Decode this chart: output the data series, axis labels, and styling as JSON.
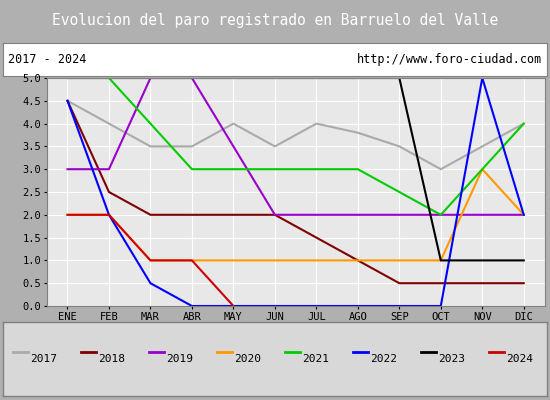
{
  "title": "Evolucion del paro registrado en Barruelo del Valle",
  "subtitle_left": "2017 - 2024",
  "subtitle_right": "http://www.foro-ciudad.com",
  "months": [
    "ENE",
    "FEB",
    "MAR",
    "ABR",
    "MAY",
    "JUN",
    "JUL",
    "AGO",
    "SEP",
    "OCT",
    "NOV",
    "DIC"
  ],
  "ylim": [
    0,
    5.0
  ],
  "yticks": [
    0.0,
    0.5,
    1.0,
    1.5,
    2.0,
    2.5,
    3.0,
    3.5,
    4.0,
    4.5,
    5.0
  ],
  "series": {
    "2017": {
      "color": "#aaaaaa",
      "data": [
        4.5,
        4.0,
        3.5,
        3.5,
        4.0,
        3.5,
        4.0,
        3.8,
        3.5,
        3.0,
        3.5,
        4.0
      ]
    },
    "2018": {
      "color": "#800000",
      "data": [
        4.5,
        2.5,
        2.0,
        2.0,
        2.0,
        2.0,
        1.5,
        1.0,
        0.5,
        0.5,
        0.5,
        0.5
      ]
    },
    "2019": {
      "color": "#9900cc",
      "data": [
        3.0,
        3.0,
        5.0,
        5.0,
        3.5,
        2.0,
        2.0,
        2.0,
        2.0,
        2.0,
        2.0,
        2.0
      ]
    },
    "2020": {
      "color": "#ff9900",
      "data": [
        2.0,
        2.0,
        1.0,
        1.0,
        1.0,
        1.0,
        1.0,
        1.0,
        1.0,
        1.0,
        3.0,
        2.0
      ]
    },
    "2021": {
      "color": "#00cc00",
      "data": [
        5.0,
        5.0,
        4.0,
        3.0,
        3.0,
        3.0,
        3.0,
        3.0,
        2.5,
        2.0,
        3.0,
        4.0
      ]
    },
    "2022": {
      "color": "#0000ff",
      "data": [
        4.5,
        2.0,
        0.5,
        0.0,
        0.0,
        0.0,
        0.0,
        0.0,
        0.0,
        0.0,
        5.0,
        2.0
      ]
    },
    "2023": {
      "color": "#000000",
      "data": [
        5.0,
        5.0,
        5.0,
        5.0,
        5.0,
        5.0,
        5.0,
        5.0,
        5.0,
        1.0,
        1.0,
        1.0
      ]
    },
    "2024": {
      "color": "#cc0000",
      "data": [
        2.0,
        2.0,
        1.0,
        1.0,
        0.0,
        null,
        null,
        null,
        null,
        null,
        null,
        null
      ]
    }
  },
  "title_bg_color": "#4f81bd",
  "title_text_color": "#ffffff",
  "subtitle_bg_color": "#ffffff",
  "subtitle_text_color": "#000000",
  "plot_bg_color": "#e8e8e8",
  "grid_color": "#ffffff",
  "legend_bg_color": "#d8d8d8",
  "legend_border_color": "#808080",
  "fig_bg_color": "#b0b0b0"
}
